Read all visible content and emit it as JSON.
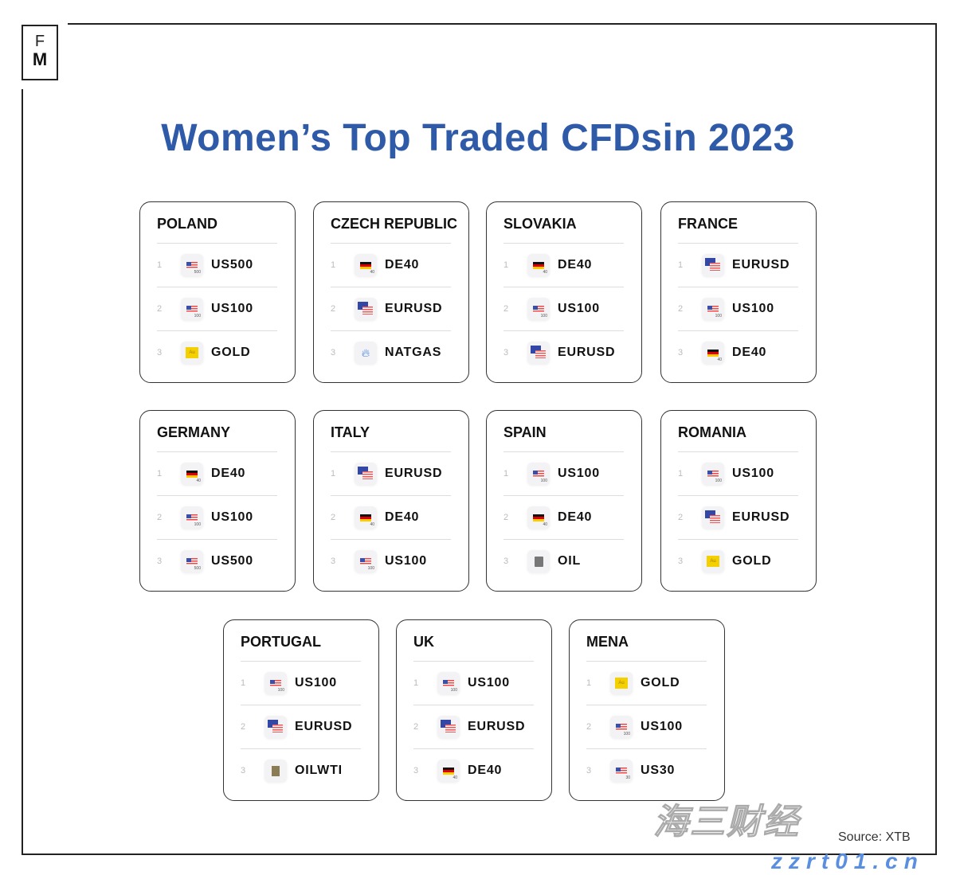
{
  "logo": {
    "line1": "F",
    "line2": "M"
  },
  "title": "Women’s Top Traded CFDsin 2023",
  "cards": [
    {
      "country": "POLAND",
      "items": [
        {
          "rank": "1",
          "symbol": "US500",
          "icon": "us-flag",
          "sub": "500"
        },
        {
          "rank": "2",
          "symbol": "US100",
          "icon": "us-flag",
          "sub": "100"
        },
        {
          "rank": "3",
          "symbol": "GOLD",
          "icon": "gold",
          "sub": "Au"
        }
      ]
    },
    {
      "country": "CZECH REPUBLIC",
      "items": [
        {
          "rank": "1",
          "symbol": "DE40",
          "icon": "de-flag",
          "sub": "40"
        },
        {
          "rank": "2",
          "symbol": "EURUSD",
          "icon": "eu-us-flags",
          "sub": ""
        },
        {
          "rank": "3",
          "symbol": "NATGAS",
          "icon": "flame",
          "sub": ""
        }
      ]
    },
    {
      "country": "SLOVAKIA",
      "items": [
        {
          "rank": "1",
          "symbol": "DE40",
          "icon": "de-flag",
          "sub": "40"
        },
        {
          "rank": "2",
          "symbol": "US100",
          "icon": "us-flag",
          "sub": "100"
        },
        {
          "rank": "3",
          "symbol": "EURUSD",
          "icon": "eu-us-flags",
          "sub": ""
        }
      ]
    },
    {
      "country": "FRANCE",
      "items": [
        {
          "rank": "1",
          "symbol": "EURUSD",
          "icon": "eu-us-flags",
          "sub": ""
        },
        {
          "rank": "2",
          "symbol": "US100",
          "icon": "us-flag",
          "sub": "100"
        },
        {
          "rank": "3",
          "symbol": "DE40",
          "icon": "de-flag",
          "sub": "40"
        }
      ]
    },
    {
      "country": "GERMANY",
      "items": [
        {
          "rank": "1",
          "symbol": "DE40",
          "icon": "de-flag",
          "sub": "40"
        },
        {
          "rank": "2",
          "symbol": "US100",
          "icon": "us-flag",
          "sub": "100"
        },
        {
          "rank": "3",
          "symbol": "US500",
          "icon": "us-flag",
          "sub": "500"
        }
      ]
    },
    {
      "country": "ITALY",
      "items": [
        {
          "rank": "1",
          "symbol": "EURUSD",
          "icon": "eu-us-flags",
          "sub": ""
        },
        {
          "rank": "2",
          "symbol": "DE40",
          "icon": "de-flag",
          "sub": "40"
        },
        {
          "rank": "3",
          "symbol": "US100",
          "icon": "us-flag",
          "sub": "100"
        }
      ]
    },
    {
      "country": "SPAIN",
      "items": [
        {
          "rank": "1",
          "symbol": "US100",
          "icon": "us-flag",
          "sub": "100"
        },
        {
          "rank": "2",
          "symbol": "DE40",
          "icon": "de-flag",
          "sub": "40"
        },
        {
          "rank": "3",
          "symbol": "OIL",
          "icon": "oil",
          "sub": ""
        }
      ]
    },
    {
      "country": "ROMANIA",
      "items": [
        {
          "rank": "1",
          "symbol": "US100",
          "icon": "us-flag",
          "sub": "100"
        },
        {
          "rank": "2",
          "symbol": "EURUSD",
          "icon": "eu-us-flags",
          "sub": ""
        },
        {
          "rank": "3",
          "symbol": "GOLD",
          "icon": "gold",
          "sub": "Au"
        }
      ]
    },
    {
      "country": "PORTUGAL",
      "items": [
        {
          "rank": "1",
          "symbol": "US100",
          "icon": "us-flag",
          "sub": "100"
        },
        {
          "rank": "2",
          "symbol": "EURUSD",
          "icon": "eu-us-flags",
          "sub": ""
        },
        {
          "rank": "3",
          "symbol": "OILWTI",
          "icon": "oilwti",
          "sub": ""
        }
      ]
    },
    {
      "country": "UK",
      "items": [
        {
          "rank": "1",
          "symbol": "US100",
          "icon": "us-flag",
          "sub": "100"
        },
        {
          "rank": "2",
          "symbol": "EURUSD",
          "icon": "eu-us-flags",
          "sub": ""
        },
        {
          "rank": "3",
          "symbol": "DE40",
          "icon": "de-flag",
          "sub": "40"
        }
      ]
    },
    {
      "country": "MENA",
      "items": [
        {
          "rank": "1",
          "symbol": "GOLD",
          "icon": "gold",
          "sub": "Au"
        },
        {
          "rank": "2",
          "symbol": "US100",
          "icon": "us-flag",
          "sub": "100"
        },
        {
          "rank": "3",
          "symbol": "US30",
          "icon": "us-flag",
          "sub": "30"
        }
      ]
    }
  ],
  "source": "Source: XTB",
  "watermark": {
    "cn": "海三财经",
    "url": "zzrt01.cn"
  },
  "colors": {
    "title": "#2e5aa8",
    "border": "#333333"
  }
}
